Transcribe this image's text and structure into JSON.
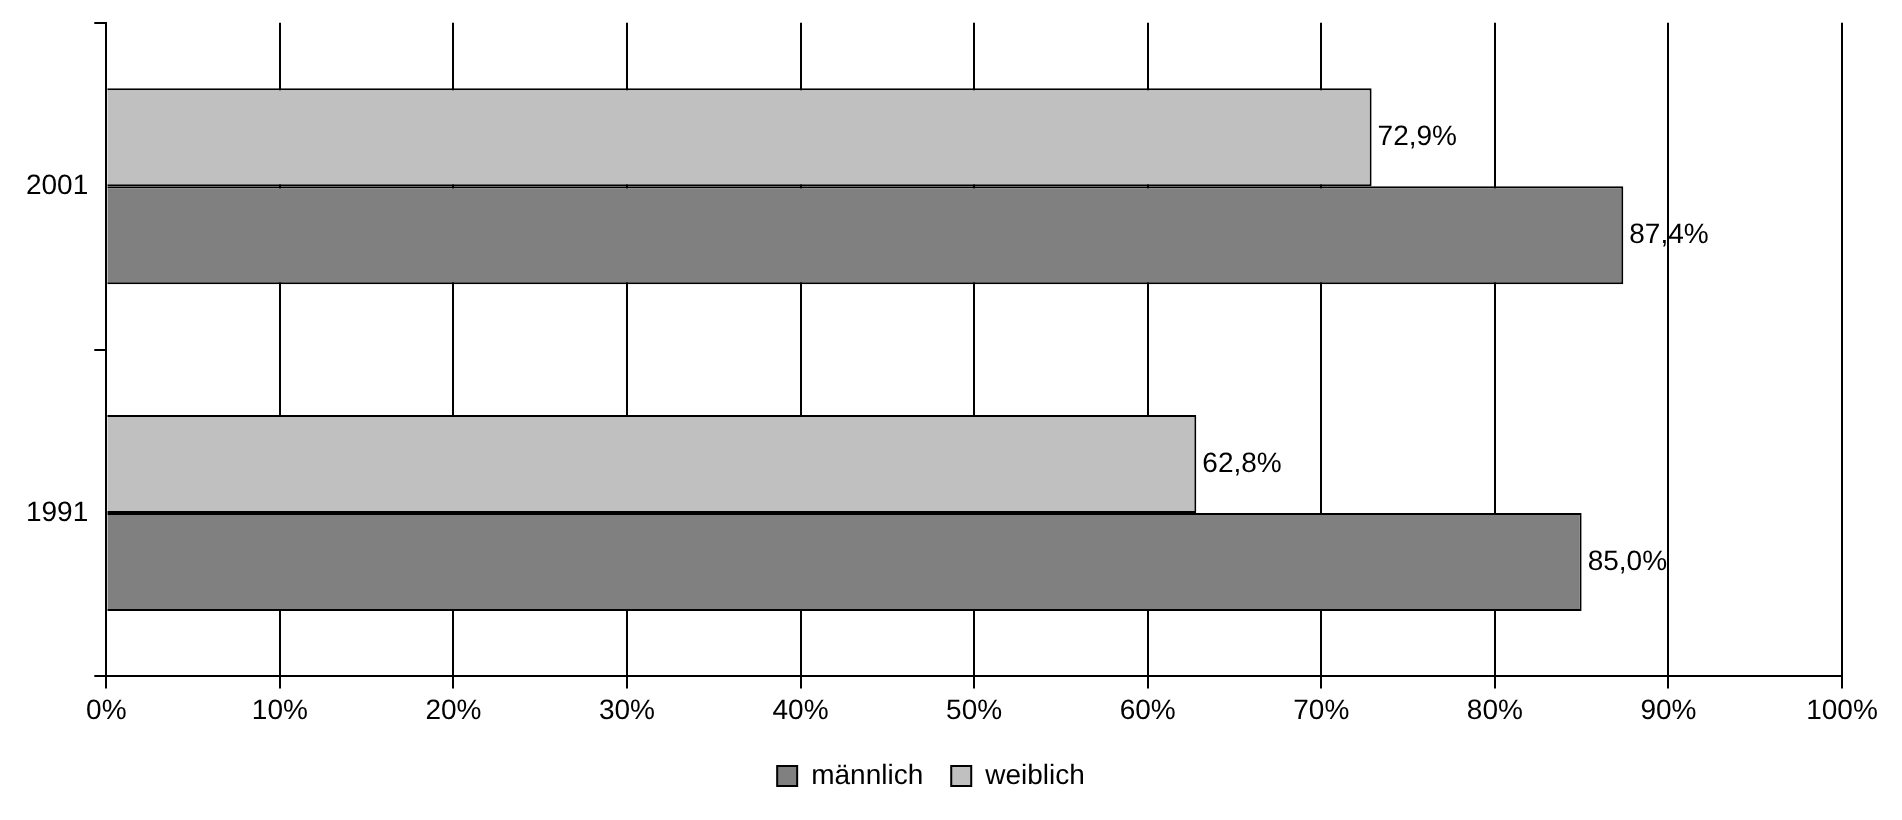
{
  "chart_data": {
    "type": "bar",
    "orientation": "horizontal",
    "categories": [
      "2001",
      "1991"
    ],
    "series": [
      {
        "name": "männlich",
        "color": "#808080",
        "values": [
          87.4,
          85.0
        ],
        "value_labels": [
          "87,4%",
          "85,0%"
        ]
      },
      {
        "name": "weiblich",
        "color": "#c0c0c0",
        "values": [
          72.9,
          62.8
        ],
        "value_labels": [
          "72,9%",
          "62,8%"
        ]
      }
    ],
    "xlim": [
      0,
      100
    ],
    "xticks": [
      {
        "value": 0,
        "label": "0%"
      },
      {
        "value": 10,
        "label": "10%"
      },
      {
        "value": 20,
        "label": "20%"
      },
      {
        "value": 30,
        "label": "30%"
      },
      {
        "value": 40,
        "label": "40%"
      },
      {
        "value": 50,
        "label": "50%"
      },
      {
        "value": 60,
        "label": "60%"
      },
      {
        "value": 70,
        "label": "70%"
      },
      {
        "value": 80,
        "label": "80%"
      },
      {
        "value": 90,
        "label": "90%"
      },
      {
        "value": 100,
        "label": "100%"
      }
    ],
    "grid": "x",
    "legend": "bottom"
  }
}
